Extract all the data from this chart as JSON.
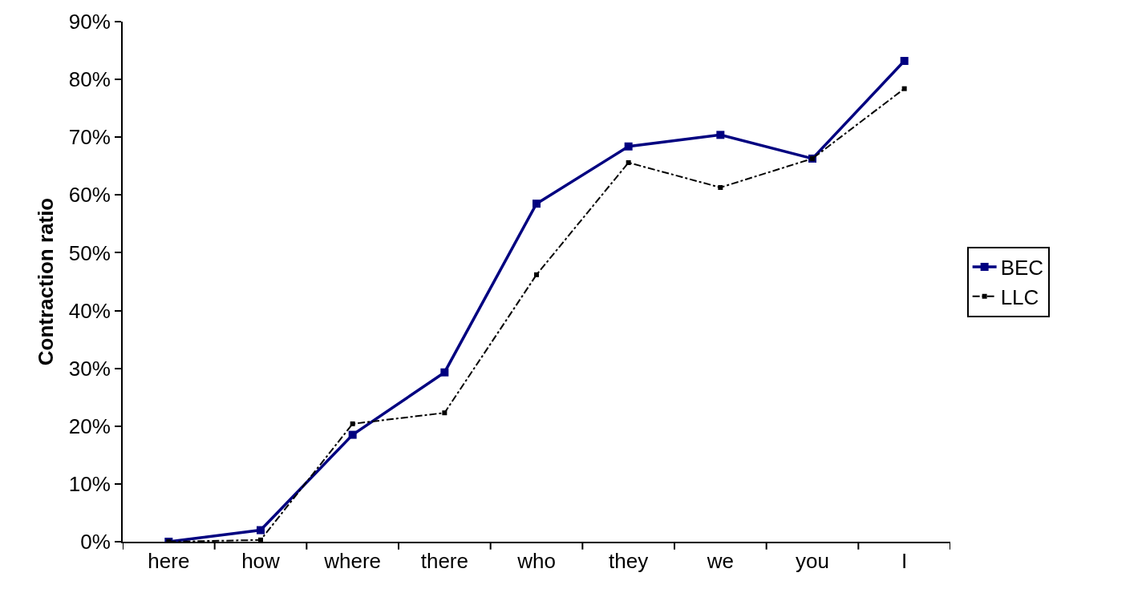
{
  "chart_data": {
    "type": "line",
    "ylabel": "Contraction ratio",
    "categories": [
      "here",
      "how",
      "where",
      "there",
      "who",
      "they",
      "we",
      "you",
      "I"
    ],
    "series": [
      {
        "name": "BEC",
        "color": "#000080",
        "line_style": "solid",
        "values": [
          0,
          2,
          18.5,
          29.3,
          58.5,
          68.4,
          70.4,
          66.3,
          83.2
        ]
      },
      {
        "name": "LLC",
        "color": "#000000",
        "line_style": "dashed",
        "values": [
          0,
          0.3,
          20.4,
          22.3,
          46.2,
          65.6,
          61.3,
          66.3,
          78.4
        ]
      }
    ],
    "ylim": [
      0,
      90
    ],
    "yticks": [
      {
        "value": 0,
        "label": "0%"
      },
      {
        "value": 10,
        "label": "10%"
      },
      {
        "value": 20,
        "label": "20%"
      },
      {
        "value": 30,
        "label": "30%"
      },
      {
        "value": 40,
        "label": "40%"
      },
      {
        "value": 50,
        "label": "50%"
      },
      {
        "value": 60,
        "label": "60%"
      },
      {
        "value": 70,
        "label": "70%"
      },
      {
        "value": 80,
        "label": "80%"
      },
      {
        "value": 90,
        "label": "90%"
      }
    ],
    "grid": false,
    "legend": "right",
    "marker": "square"
  }
}
